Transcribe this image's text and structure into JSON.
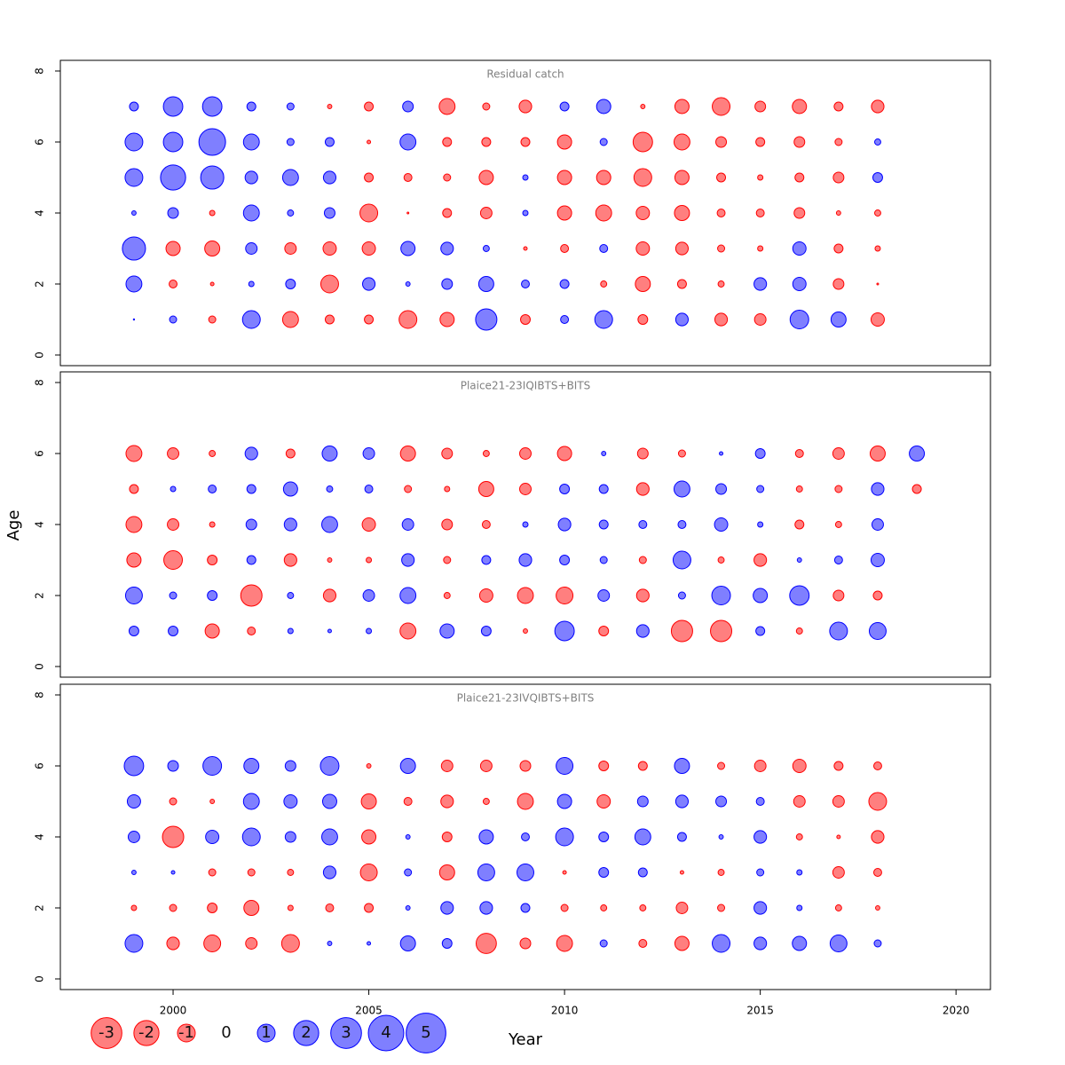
{
  "chart_data": [
    {
      "type": "scatter",
      "title": "Residual catch",
      "years": [
        1999,
        2000,
        2001,
        2002,
        2003,
        2004,
        2005,
        2006,
        2007,
        2008,
        2009,
        2010,
        2011,
        2012,
        2013,
        2014,
        2015,
        2016,
        2017,
        2018
      ],
      "ages": [
        7,
        6,
        5,
        4,
        3,
        2,
        1
      ],
      "values": [
        [
          0.25,
          1.2,
          1.2,
          0.25,
          0.16,
          -0.06,
          -0.25,
          0.36,
          -0.8,
          -0.16,
          -0.5,
          0.25,
          0.64,
          -0.06,
          -0.64,
          -1.0,
          -0.36,
          -0.64,
          -0.25,
          -0.5
        ],
        [
          1.0,
          1.2,
          2.25,
          0.8,
          0.16,
          0.25,
          -0.04,
          0.8,
          -0.25,
          -0.25,
          -0.25,
          -0.64,
          0.16,
          -1.2,
          -0.8,
          -0.36,
          -0.25,
          -0.36,
          -0.16,
          0.12
        ],
        [
          1.0,
          2.0,
          1.7,
          0.5,
          0.8,
          0.5,
          -0.25,
          -0.2,
          -0.16,
          -0.64,
          0.09,
          -0.64,
          -0.64,
          -1.0,
          -0.64,
          -0.25,
          -0.09,
          -0.25,
          -0.36,
          0.3
        ],
        [
          0.06,
          0.36,
          -0.09,
          0.8,
          0.12,
          0.36,
          -1.0,
          -0.01,
          -0.25,
          -0.42,
          0.09,
          -0.64,
          -0.8,
          -0.56,
          -0.72,
          -0.2,
          -0.2,
          -0.36,
          -0.06,
          -0.12
        ],
        [
          1.7,
          -0.64,
          -0.72,
          0.42,
          -0.42,
          -0.56,
          -0.56,
          0.64,
          0.5,
          0.12,
          -0.04,
          -0.2,
          0.2,
          -0.56,
          -0.5,
          -0.16,
          -0.09,
          0.56,
          -0.25,
          -0.09
        ],
        [
          0.8,
          -0.2,
          -0.04,
          0.09,
          0.3,
          -1.0,
          0.5,
          0.06,
          0.36,
          0.72,
          0.2,
          0.25,
          -0.12,
          -0.72,
          -0.25,
          -0.12,
          0.5,
          0.56,
          -0.36,
          -0.01
        ],
        [
          0.005,
          0.16,
          -0.16,
          1.0,
          -0.8,
          -0.25,
          -0.25,
          -1.0,
          -0.64,
          1.44,
          -0.3,
          0.2,
          1.0,
          -0.3,
          0.5,
          -0.5,
          -0.42,
          1.1,
          0.72,
          -0.56
        ]
      ]
    },
    {
      "type": "scatter",
      "title": "Plaice21-23IQIBTS+BITS",
      "years": [
        1999,
        2000,
        2001,
        2002,
        2003,
        2004,
        2005,
        2006,
        2007,
        2008,
        2009,
        2010,
        2011,
        2012,
        2013,
        2014,
        2015,
        2016,
        2017,
        2018,
        2019
      ],
      "ages": [
        6,
        5,
        4,
        3,
        2,
        1
      ],
      "values": [
        [
          -0.8,
          -0.42,
          -0.12,
          0.5,
          -0.25,
          0.72,
          0.42,
          -0.72,
          -0.36,
          -0.12,
          -0.42,
          -0.64,
          0.06,
          -0.36,
          -0.16,
          0.04,
          0.3,
          -0.2,
          -0.42,
          -0.72,
          0.72
        ],
        [
          -0.25,
          0.09,
          0.2,
          0.25,
          0.64,
          0.12,
          0.2,
          -0.16,
          -0.09,
          -0.72,
          -0.42,
          0.3,
          0.25,
          -0.5,
          0.8,
          0.36,
          0.16,
          -0.12,
          -0.16,
          0.5,
          -0.25
        ],
        [
          -0.8,
          -0.42,
          -0.09,
          0.36,
          0.5,
          0.8,
          -0.56,
          0.42,
          -0.36,
          -0.2,
          0.09,
          0.5,
          0.25,
          0.2,
          0.2,
          0.56,
          0.09,
          -0.25,
          -0.12,
          0.42,
          null
        ],
        [
          -0.64,
          -1.1,
          -0.3,
          0.25,
          -0.5,
          -0.06,
          -0.09,
          0.5,
          -0.16,
          0.25,
          0.5,
          0.3,
          0.16,
          -0.16,
          1.0,
          -0.12,
          -0.5,
          0.06,
          0.2,
          0.56,
          null
        ],
        [
          0.9,
          0.16,
          0.3,
          -1.44,
          0.12,
          -0.5,
          0.42,
          0.8,
          -0.12,
          -0.56,
          -0.8,
          -0.9,
          0.42,
          -0.5,
          0.16,
          1.1,
          0.64,
          1.2,
          -0.36,
          -0.25,
          null
        ],
        [
          0.3,
          0.3,
          -0.64,
          -0.2,
          0.09,
          0.04,
          0.09,
          -0.8,
          0.64,
          0.3,
          -0.06,
          1.2,
          -0.3,
          0.5,
          -1.44,
          -1.44,
          0.25,
          -0.12,
          1.0,
          0.9,
          null
        ]
      ]
    },
    {
      "type": "scatter",
      "title": "Plaice21-23IVQIBTS+BITS",
      "years": [
        1999,
        2000,
        2001,
        2002,
        2003,
        2004,
        2005,
        2006,
        2007,
        2008,
        2009,
        2010,
        2011,
        2012,
        2013,
        2014,
        2015,
        2016,
        2017,
        2018
      ],
      "ages": [
        6,
        5,
        4,
        3,
        2,
        1
      ],
      "values": [
        [
          1.2,
          0.36,
          1.1,
          0.72,
          0.36,
          1.1,
          -0.06,
          0.72,
          -0.42,
          -0.42,
          -0.36,
          0.9,
          -0.3,
          -0.25,
          0.72,
          -0.16,
          -0.42,
          -0.56,
          -0.25,
          -0.2
        ],
        [
          0.56,
          -0.16,
          -0.06,
          0.8,
          0.56,
          0.64,
          -0.72,
          -0.2,
          -0.5,
          -0.12,
          -0.8,
          0.64,
          -0.56,
          0.36,
          0.5,
          0.36,
          0.2,
          -0.42,
          -0.42,
          -1.0
        ],
        [
          0.42,
          -1.44,
          0.56,
          1.0,
          0.36,
          0.8,
          -0.64,
          0.06,
          -0.3,
          0.64,
          0.2,
          1.0,
          0.3,
          0.8,
          0.25,
          0.06,
          0.5,
          -0.12,
          -0.04,
          -0.5
        ],
        [
          0.06,
          0.04,
          -0.16,
          -0.16,
          -0.12,
          0.5,
          -0.9,
          0.16,
          -0.72,
          0.9,
          0.9,
          -0.04,
          0.3,
          0.25,
          -0.04,
          -0.12,
          0.16,
          0.09,
          -0.42,
          -0.2
        ],
        [
          -0.09,
          -0.16,
          -0.3,
          -0.72,
          -0.09,
          -0.2,
          -0.25,
          0.06,
          0.5,
          0.5,
          0.25,
          -0.16,
          -0.12,
          -0.12,
          -0.42,
          -0.16,
          0.5,
          0.09,
          -0.12,
          -0.06
        ],
        [
          1.0,
          -0.5,
          -0.9,
          -0.42,
          -1.0,
          0.06,
          0.04,
          0.72,
          0.3,
          -1.3,
          -0.36,
          -0.8,
          0.16,
          -0.2,
          -0.64,
          1.0,
          0.5,
          0.64,
          0.9,
          0.16
        ]
      ]
    }
  ],
  "axes": {
    "xlabel": "Year",
    "ylabel": "Age",
    "xlim": [
      1997.12,
      2020.88
    ],
    "xticks": [
      2000,
      2005,
      2010,
      2015,
      2020
    ],
    "ylim": [
      -0.3,
      8.3
    ],
    "yticks": [
      0,
      2,
      4,
      6,
      8
    ],
    "color_positive": "#0000ff",
    "color_negative": "#ff0000"
  },
  "legend": {
    "values": [
      -3,
      -2,
      -1,
      0,
      1,
      2,
      3,
      4,
      5
    ]
  }
}
